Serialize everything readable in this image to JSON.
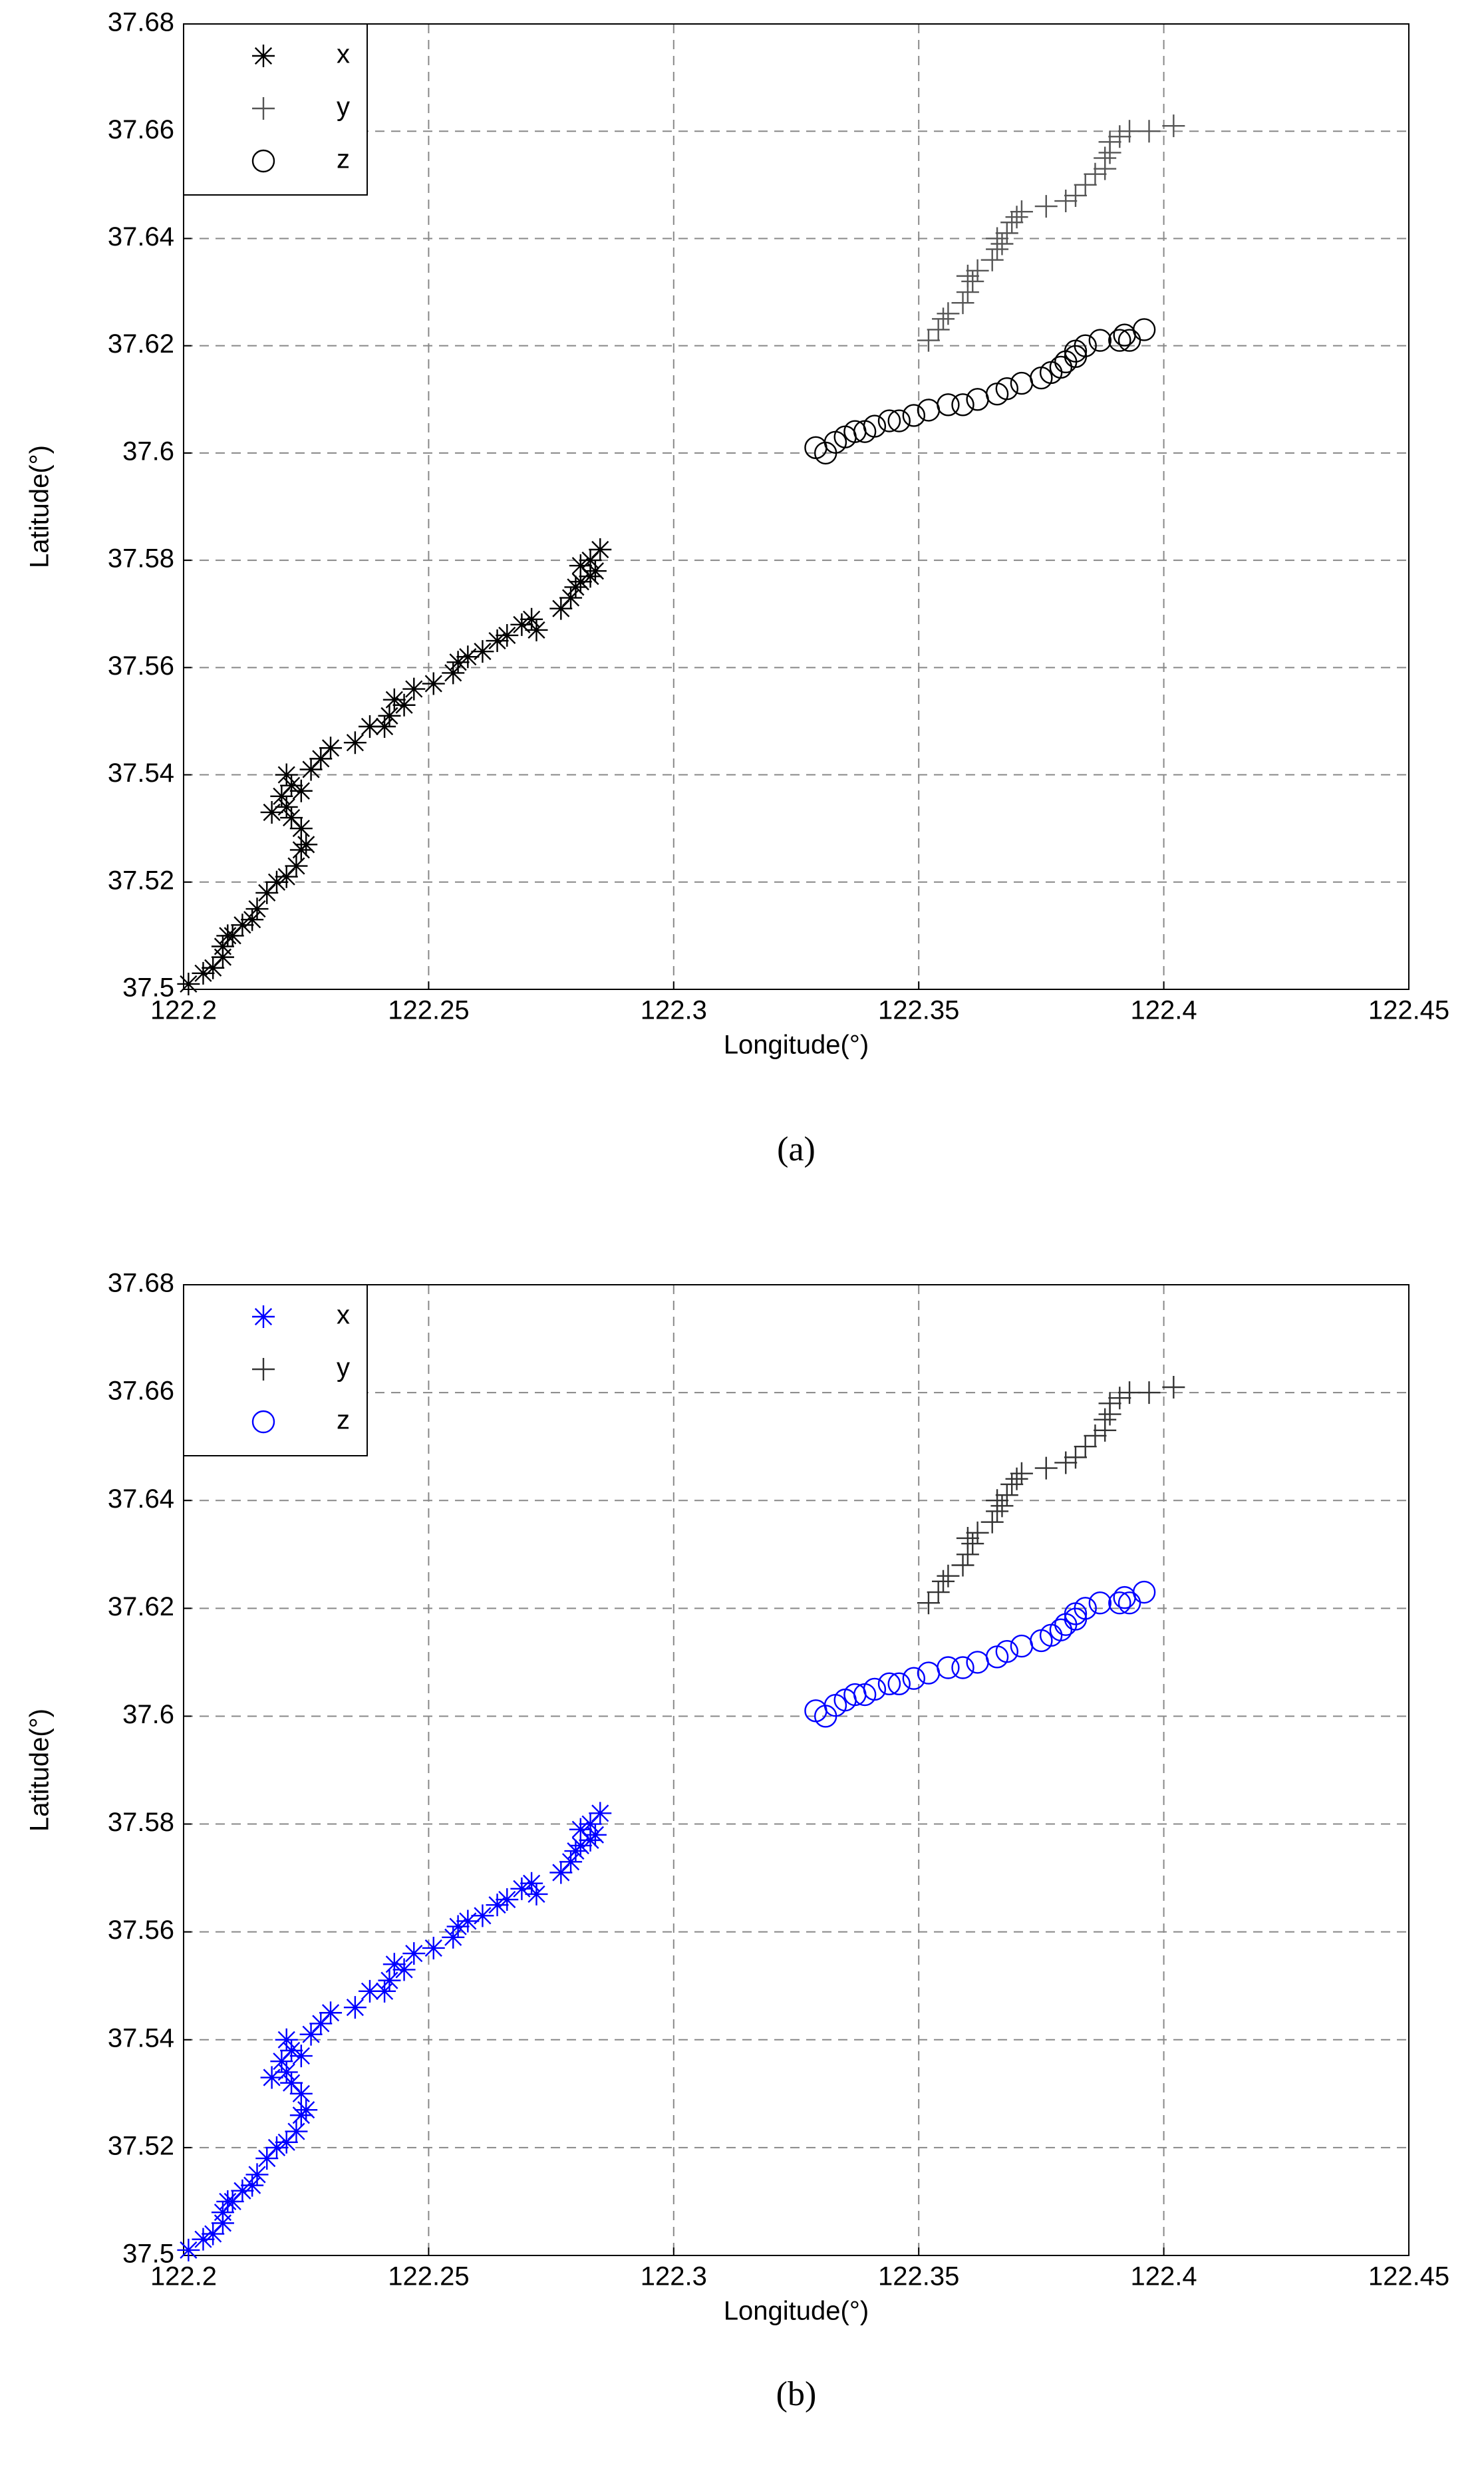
{
  "chart_data": [
    {
      "type": "scatter",
      "caption": "(a)",
      "xlabel": "Longitude(°)",
      "ylabel": "Latitude(°)",
      "xlim": [
        122.2,
        122.45
      ],
      "ylim": [
        37.5,
        37.68
      ],
      "xticks": [
        122.2,
        122.25,
        122.3,
        122.35,
        122.4,
        122.45
      ],
      "yticks": [
        37.5,
        37.52,
        37.54,
        37.56,
        37.58,
        37.6,
        37.62,
        37.64,
        37.66,
        37.68
      ],
      "grid": true,
      "legend": "upper left",
      "series": [
        {
          "name": "x",
          "color": "#000000",
          "marker": "*",
          "x": [
            122.201,
            122.204,
            122.206,
            122.208,
            122.208,
            122.209,
            122.21,
            122.212,
            122.214,
            122.215,
            122.217,
            122.219,
            122.221,
            122.223,
            122.224,
            122.225,
            122.224,
            122.222,
            122.221,
            122.218,
            122.22,
            122.222,
            122.221,
            122.224,
            122.226,
            122.228,
            122.23,
            122.235,
            122.238,
            122.241,
            122.242,
            122.243,
            122.245,
            122.247,
            122.251,
            122.255,
            122.256,
            122.258,
            122.261,
            122.264,
            122.266,
            122.269,
            122.271,
            122.272,
            122.277,
            122.279,
            122.28,
            122.281,
            122.283,
            122.284,
            122.281,
            122.283,
            122.285
          ],
          "y": [
            37.501,
            37.503,
            37.504,
            37.506,
            37.508,
            37.51,
            37.51,
            37.512,
            37.513,
            37.515,
            37.518,
            37.52,
            37.521,
            37.523,
            37.526,
            37.527,
            37.53,
            37.532,
            37.534,
            37.533,
            37.536,
            37.538,
            37.54,
            37.537,
            37.541,
            37.543,
            37.545,
            37.546,
            37.549,
            37.549,
            37.551,
            37.554,
            37.553,
            37.556,
            37.557,
            37.559,
            37.561,
            37.562,
            37.563,
            37.565,
            37.566,
            37.568,
            37.569,
            37.567,
            37.571,
            37.573,
            37.575,
            37.576,
            37.577,
            37.578,
            37.579,
            37.58,
            37.582
          ]
        },
        {
          "name": "y",
          "color": "#555555",
          "marker": "+",
          "x": [
            122.352,
            122.354,
            122.355,
            122.356,
            122.359,
            122.36,
            122.361,
            122.36,
            122.362,
            122.365,
            122.366,
            122.367,
            122.366,
            122.368,
            122.369,
            122.37,
            122.371,
            122.376,
            122.38,
            122.382,
            122.384,
            122.386,
            122.388,
            122.388,
            122.389,
            122.389,
            122.391,
            122.393,
            122.397,
            122.402
          ],
          "y": [
            37.621,
            37.623,
            37.625,
            37.626,
            37.628,
            37.63,
            37.632,
            37.633,
            37.634,
            37.636,
            37.638,
            37.639,
            37.64,
            37.641,
            37.643,
            37.644,
            37.645,
            37.646,
            37.647,
            37.648,
            37.65,
            37.652,
            37.653,
            37.655,
            37.656,
            37.658,
            37.659,
            37.66,
            37.66,
            37.661
          ]
        },
        {
          "name": "z",
          "color": "#000000",
          "marker": "o",
          "x": [
            122.329,
            122.331,
            122.333,
            122.335,
            122.337,
            122.339,
            122.341,
            122.344,
            122.346,
            122.349,
            122.352,
            122.356,
            122.359,
            122.362,
            122.366,
            122.368,
            122.371,
            122.375,
            122.377,
            122.379,
            122.38,
            122.382,
            122.382,
            122.384,
            122.387,
            122.391,
            122.392,
            122.393,
            122.396
          ],
          "y": [
            37.601,
            37.6,
            37.602,
            37.603,
            37.604,
            37.604,
            37.605,
            37.606,
            37.606,
            37.607,
            37.608,
            37.609,
            37.609,
            37.61,
            37.611,
            37.612,
            37.613,
            37.614,
            37.615,
            37.616,
            37.617,
            37.619,
            37.618,
            37.62,
            37.621,
            37.621,
            37.622,
            37.621,
            37.623
          ]
        }
      ]
    },
    {
      "type": "scatter",
      "caption": "(b)",
      "xlabel": "Longitude(°)",
      "ylabel": "Latitude(°)",
      "xlim": [
        122.2,
        122.45
      ],
      "ylim": [
        37.5,
        37.68
      ],
      "xticks": [
        122.2,
        122.25,
        122.3,
        122.35,
        122.4,
        122.45
      ],
      "yticks": [
        37.5,
        37.52,
        37.54,
        37.56,
        37.58,
        37.6,
        37.62,
        37.64,
        37.66,
        37.68
      ],
      "grid": true,
      "legend": "upper left",
      "series": [
        {
          "name": "x",
          "color": "#0000ff",
          "marker": "*",
          "x": [
            122.201,
            122.204,
            122.206,
            122.208,
            122.208,
            122.209,
            122.21,
            122.212,
            122.214,
            122.215,
            122.217,
            122.219,
            122.221,
            122.223,
            122.224,
            122.225,
            122.224,
            122.222,
            122.221,
            122.218,
            122.22,
            122.222,
            122.221,
            122.224,
            122.226,
            122.228,
            122.23,
            122.235,
            122.238,
            122.241,
            122.242,
            122.243,
            122.245,
            122.247,
            122.251,
            122.255,
            122.256,
            122.258,
            122.261,
            122.264,
            122.266,
            122.269,
            122.271,
            122.272,
            122.277,
            122.279,
            122.28,
            122.281,
            122.283,
            122.284,
            122.281,
            122.283,
            122.285
          ],
          "y": [
            37.501,
            37.503,
            37.504,
            37.506,
            37.508,
            37.51,
            37.51,
            37.512,
            37.513,
            37.515,
            37.518,
            37.52,
            37.521,
            37.523,
            37.526,
            37.527,
            37.53,
            37.532,
            37.534,
            37.533,
            37.536,
            37.538,
            37.54,
            37.537,
            37.541,
            37.543,
            37.545,
            37.546,
            37.549,
            37.549,
            37.551,
            37.554,
            37.553,
            37.556,
            37.557,
            37.559,
            37.561,
            37.562,
            37.563,
            37.565,
            37.566,
            37.568,
            37.569,
            37.567,
            37.571,
            37.573,
            37.575,
            37.576,
            37.577,
            37.578,
            37.579,
            37.58,
            37.582
          ]
        },
        {
          "name": "y",
          "color": "#333333",
          "marker": "+",
          "x": [
            122.352,
            122.354,
            122.355,
            122.356,
            122.359,
            122.36,
            122.361,
            122.36,
            122.362,
            122.365,
            122.366,
            122.367,
            122.366,
            122.368,
            122.369,
            122.37,
            122.371,
            122.376,
            122.38,
            122.382,
            122.384,
            122.386,
            122.388,
            122.388,
            122.389,
            122.389,
            122.391,
            122.393,
            122.397,
            122.402
          ],
          "y": [
            37.621,
            37.623,
            37.625,
            37.626,
            37.628,
            37.63,
            37.632,
            37.633,
            37.634,
            37.636,
            37.638,
            37.639,
            37.64,
            37.641,
            37.643,
            37.644,
            37.645,
            37.646,
            37.647,
            37.648,
            37.65,
            37.652,
            37.653,
            37.655,
            37.656,
            37.658,
            37.659,
            37.66,
            37.66,
            37.661
          ]
        },
        {
          "name": "z",
          "color": "#0000ff",
          "marker": "o",
          "x": [
            122.329,
            122.331,
            122.333,
            122.335,
            122.337,
            122.339,
            122.341,
            122.344,
            122.346,
            122.349,
            122.352,
            122.356,
            122.359,
            122.362,
            122.366,
            122.368,
            122.371,
            122.375,
            122.377,
            122.379,
            122.38,
            122.382,
            122.382,
            122.384,
            122.387,
            122.391,
            122.392,
            122.393,
            122.396
          ],
          "y": [
            37.601,
            37.6,
            37.602,
            37.603,
            37.604,
            37.604,
            37.605,
            37.606,
            37.606,
            37.607,
            37.608,
            37.609,
            37.609,
            37.61,
            37.611,
            37.612,
            37.613,
            37.614,
            37.615,
            37.616,
            37.617,
            37.619,
            37.618,
            37.62,
            37.621,
            37.621,
            37.622,
            37.621,
            37.623
          ]
        }
      ]
    }
  ]
}
